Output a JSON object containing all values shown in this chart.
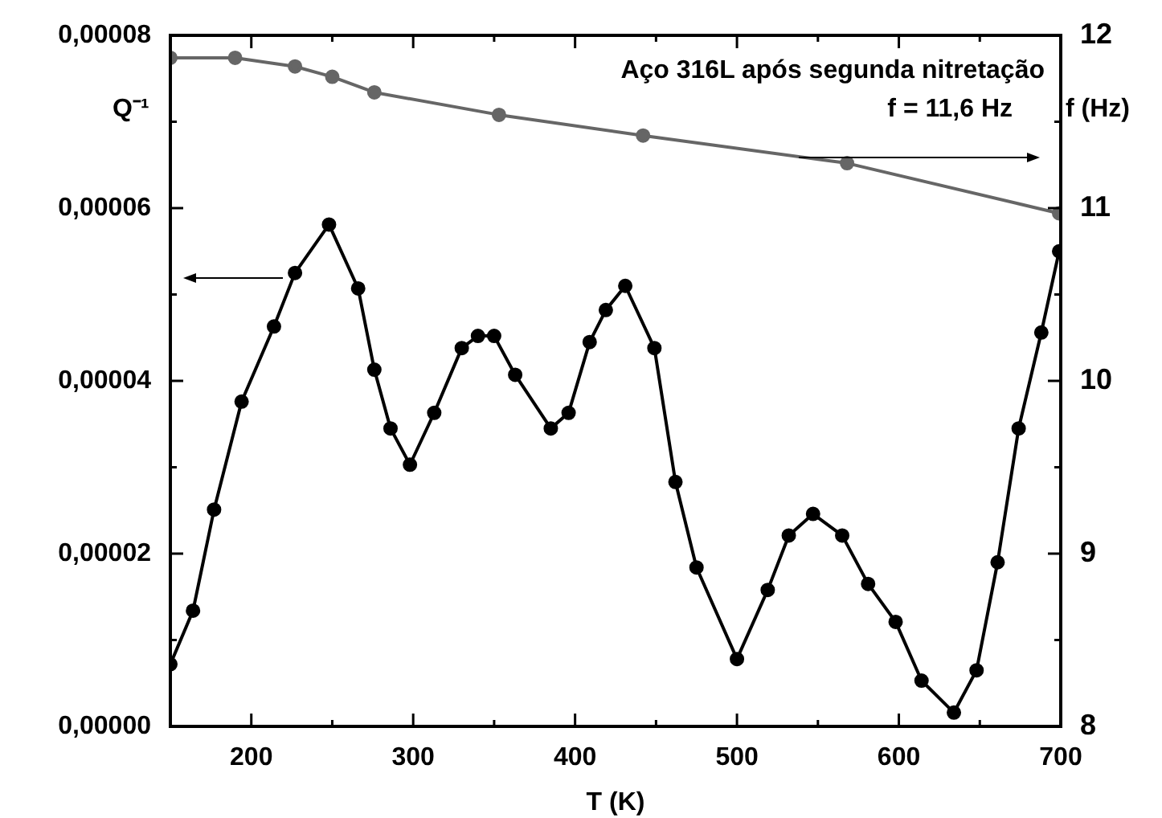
{
  "chart_data": {
    "type": "line",
    "xlabel": "T (K)",
    "ylabel": "Q⁻¹",
    "y2label": "f (Hz)",
    "annotations": [
      "Aço 316L após segunda nitretação",
      "f = 11,6 Hz"
    ],
    "legend": false,
    "marker": "circle",
    "line_style": "solid",
    "xlim": [
      150,
      700
    ],
    "xticks": [
      {
        "value": 150,
        "label": null
      },
      200,
      {
        "value": 250,
        "label": null
      },
      300,
      {
        "value": 350,
        "label": null
      },
      400,
      {
        "value": 450,
        "label": null
      },
      500,
      {
        "value": 550,
        "label": null
      },
      600,
      {
        "value": 650,
        "label": null
      },
      700
    ],
    "ylim": [
      0,
      8e-05
    ],
    "yticks": [
      {
        "value": 0,
        "label": "0,00000"
      },
      {
        "value": 1e-05,
        "label": null
      },
      {
        "value": 2e-05,
        "label": "0,00002"
      },
      {
        "value": 3e-05,
        "label": null
      },
      {
        "value": 4e-05,
        "label": "0,00004"
      },
      {
        "value": 5e-05,
        "label": null
      },
      {
        "value": 6e-05,
        "label": "0,00006"
      },
      {
        "value": 7e-05,
        "label": null
      },
      {
        "value": 8e-05,
        "label": "0,00008"
      }
    ],
    "y2lim": [
      8,
      12
    ],
    "y2ticks": [
      8,
      {
        "value": 8.5,
        "label": null
      },
      9,
      {
        "value": 9.5,
        "label": null
      },
      10,
      {
        "value": 10.5,
        "label": null
      },
      11,
      {
        "value": 11.5,
        "label": null
      },
      12
    ],
    "series": [
      {
        "color": "#000000",
        "x": [
          150,
          164,
          177,
          194,
          214,
          227,
          248,
          266,
          276,
          286,
          298,
          313,
          330,
          340,
          350,
          363,
          385,
          396,
          409,
          419,
          431,
          449,
          462,
          475,
          500,
          519,
          532,
          547,
          565,
          581,
          598,
          614,
          634,
          648,
          661,
          674,
          688,
          699
        ],
        "values": [
          7.2e-06,
          1.34e-05,
          2.51e-05,
          3.76e-05,
          4.63e-05,
          5.25e-05,
          5.81e-05,
          5.07e-05,
          4.13e-05,
          3.45e-05,
          3.03e-05,
          3.63e-05,
          4.38e-05,
          4.52e-05,
          4.52e-05,
          4.07e-05,
          3.45e-05,
          3.63e-05,
          4.45e-05,
          4.82e-05,
          5.1e-05,
          4.38e-05,
          2.83e-05,
          1.84e-05,
          7.8e-06,
          1.58e-05,
          2.21e-05,
          2.46e-05,
          2.21e-05,
          1.65e-05,
          1.21e-05,
          5.3e-06,
          1.6e-06,
          6.5e-06,
          1.9e-05,
          3.45e-05,
          4.56e-05,
          5.5e-05
        ]
      },
      {
        "color": "#666666",
        "axis": "y2",
        "x": [
          150,
          190,
          227,
          250,
          276,
          353,
          442,
          568,
          699
        ],
        "values": [
          11.87,
          11.87,
          11.82,
          11.76,
          11.67,
          11.54,
          11.42,
          11.26,
          10.97
        ]
      }
    ]
  }
}
